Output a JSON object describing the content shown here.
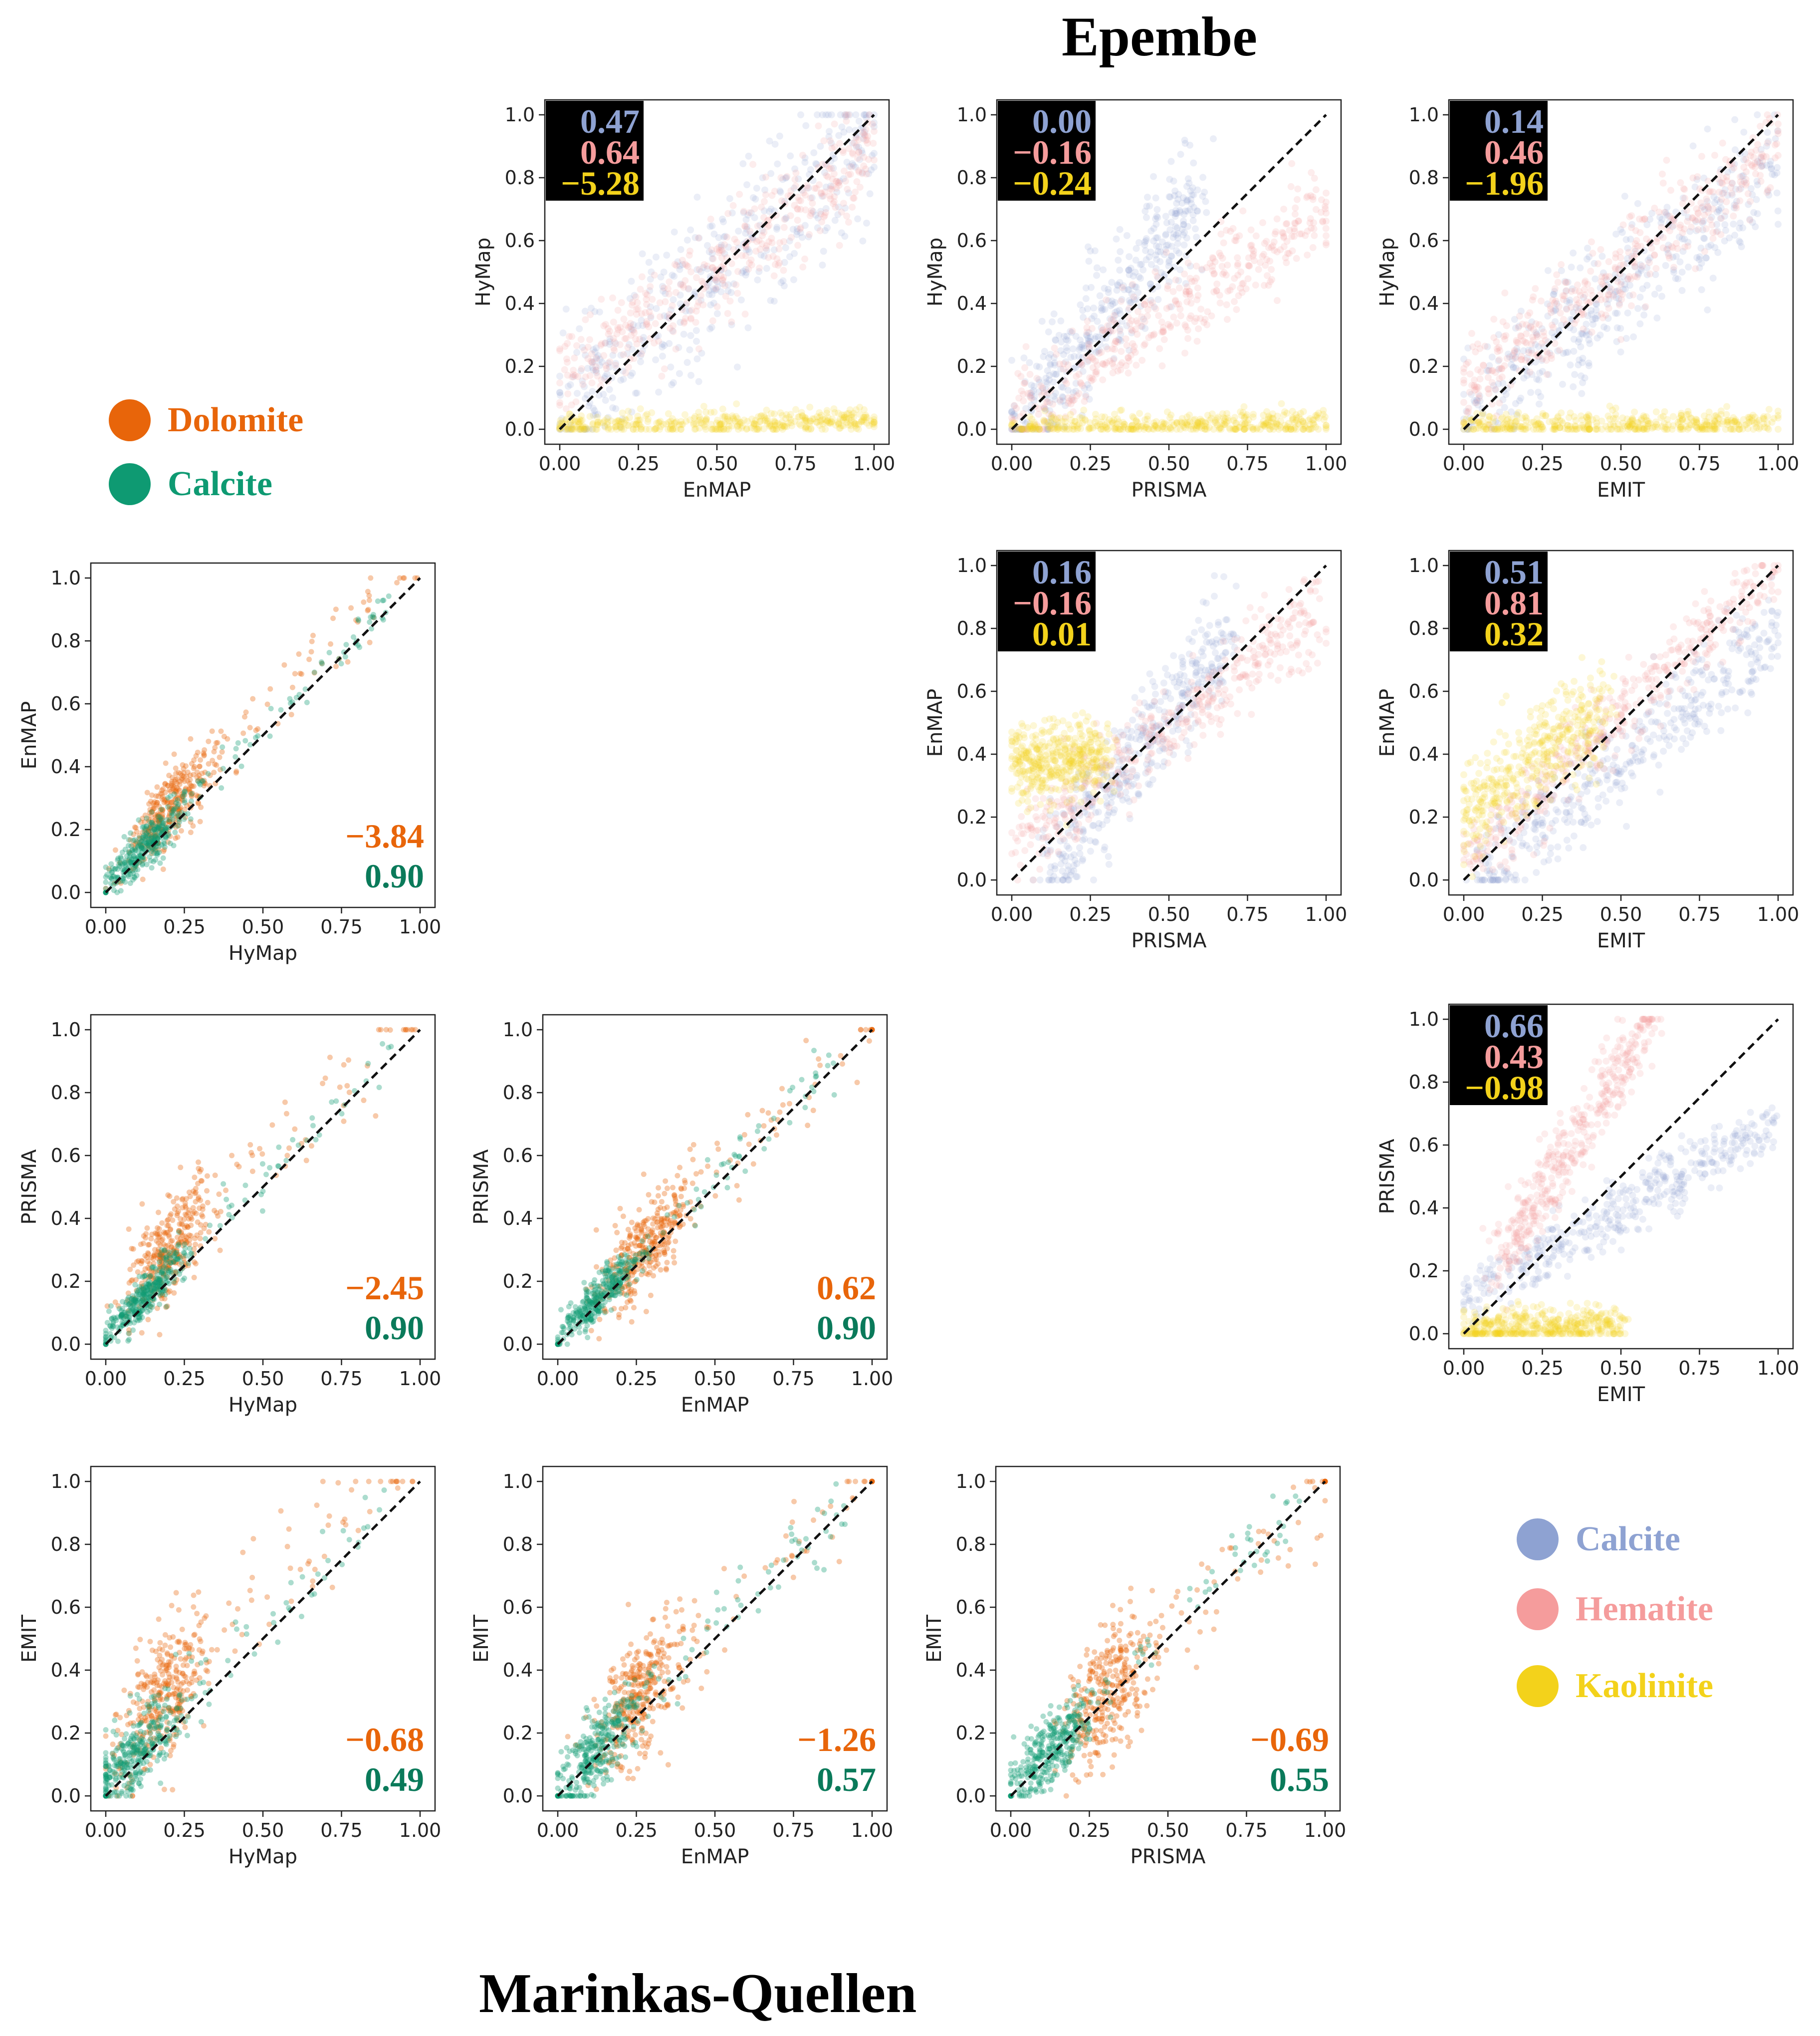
{
  "titles": {
    "top": "Epembe",
    "bottom": "Marinkas-Quellen"
  },
  "legends": {
    "marinkas": [
      {
        "label": "Dolomite",
        "color": "#e8650a"
      },
      {
        "label": "Calcite",
        "color": "#0e9a72"
      }
    ],
    "epembe": [
      {
        "label": "Calcite",
        "color": "#8ea2d2"
      },
      {
        "label": "Hematite",
        "color": "#f59c9c"
      },
      {
        "label": "Kaolinite",
        "color": "#f3d21b"
      }
    ]
  },
  "stat_colors": {
    "Dolomite": "#e8650a",
    "Calcite_mq": "#0a7a5a",
    "Calcite": "#8ea2d2",
    "Hematite": "#f59c9c",
    "Kaolinite": "#f3d21b"
  },
  "chart_data": [
    {
      "id": "hymap-vs-enmap-epembe",
      "type": "scatter",
      "site": "Epembe",
      "xlabel": "EnMAP",
      "ylabel": "HyMap",
      "xlim": [
        0,
        1
      ],
      "ylim": [
        0,
        1
      ],
      "xticks": [
        "0.00",
        "0.25",
        "0.50",
        "0.75",
        "1.00"
      ],
      "yticks": [
        "0.0",
        "0.2",
        "0.4",
        "0.6",
        "0.8",
        "1.0"
      ],
      "reference_line": "1:1 dashed",
      "series": [
        {
          "name": "Calcite",
          "color": "#8ea2d2",
          "r2": "0.47",
          "trend": [
            [
              0,
              0.05
            ],
            [
              1,
              0.95
            ]
          ],
          "spread": 0.12
        },
        {
          "name": "Hematite",
          "color": "#f59c9c",
          "r2": "0.64",
          "trend": [
            [
              0,
              0.14
            ],
            [
              1,
              0.88
            ]
          ],
          "spread": 0.08
        },
        {
          "name": "Kaolinite",
          "color": "#f3d21b",
          "r2": "−5.28",
          "trend": [
            [
              0,
              0.01
            ],
            [
              1,
              0.03
            ]
          ],
          "spread": 0.02
        }
      ]
    },
    {
      "id": "hymap-vs-prisma-epembe",
      "type": "scatter",
      "site": "Epembe",
      "xlabel": "PRISMA",
      "ylabel": "HyMap",
      "xlim": [
        0,
        1
      ],
      "ylim": [
        0,
        1
      ],
      "xticks": [
        "0.00",
        "0.25",
        "0.50",
        "0.75",
        "1.00"
      ],
      "yticks": [
        "0.0",
        "0.2",
        "0.4",
        "0.6",
        "0.8",
        "1.0"
      ],
      "reference_line": "1:1 dashed",
      "series": [
        {
          "name": "Calcite",
          "color": "#8ea2d2",
          "r2": "0.00",
          "trend": [
            [
              0,
              0.0
            ],
            [
              0.6,
              0.75
            ]
          ],
          "spread": 0.09
        },
        {
          "name": "Hematite",
          "color": "#f59c9c",
          "r2": "−0.16",
          "trend": [
            [
              0,
              0.03
            ],
            [
              1,
              0.7
            ]
          ],
          "spread": 0.07
        },
        {
          "name": "Kaolinite",
          "color": "#f3d21b",
          "r2": "−0.24",
          "trend": [
            [
              0,
              0.01
            ],
            [
              1,
              0.02
            ]
          ],
          "spread": 0.02
        }
      ]
    },
    {
      "id": "hymap-vs-emit-epembe",
      "type": "scatter",
      "site": "Epembe",
      "xlabel": "EMIT",
      "ylabel": "HyMap",
      "xlim": [
        0,
        1
      ],
      "ylim": [
        0,
        1
      ],
      "xticks": [
        "0.00",
        "0.25",
        "0.50",
        "0.75",
        "1.00"
      ],
      "yticks": [
        "0.0",
        "0.2",
        "0.4",
        "0.6",
        "0.8",
        "1.0"
      ],
      "reference_line": "1:1 dashed",
      "series": [
        {
          "name": "Calcite",
          "color": "#8ea2d2",
          "r2": "0.14",
          "trend": [
            [
              0,
              0.05
            ],
            [
              1,
              0.85
            ]
          ],
          "spread": 0.1
        },
        {
          "name": "Hematite",
          "color": "#f59c9c",
          "r2": "0.46",
          "trend": [
            [
              0,
              0.12
            ],
            [
              1,
              0.9
            ]
          ],
          "spread": 0.07
        },
        {
          "name": "Kaolinite",
          "color": "#f3d21b",
          "r2": "−1.96",
          "trend": [
            [
              0,
              0.01
            ],
            [
              1,
              0.02
            ]
          ],
          "spread": 0.02
        }
      ]
    },
    {
      "id": "enmap-vs-prisma-epembe",
      "type": "scatter",
      "site": "Epembe",
      "xlabel": "PRISMA",
      "ylabel": "EnMAP",
      "xlim": [
        0,
        1
      ],
      "ylim": [
        0,
        1
      ],
      "xticks": [
        "0.00",
        "0.25",
        "0.50",
        "0.75",
        "1.00"
      ],
      "yticks": [
        "0.0",
        "0.2",
        "0.4",
        "0.6",
        "0.8",
        "1.0"
      ],
      "reference_line": "1:1 dashed",
      "series": [
        {
          "name": "Calcite",
          "color": "#8ea2d2",
          "r2": "0.16",
          "trend": [
            [
              0.1,
              0.0
            ],
            [
              0.7,
              0.8
            ]
          ],
          "spread": 0.08
        },
        {
          "name": "Hematite",
          "color": "#f59c9c",
          "r2": "−0.16",
          "trend": [
            [
              0,
              0.1
            ],
            [
              1,
              0.88
            ]
          ],
          "spread": 0.07
        },
        {
          "name": "Kaolinite",
          "color": "#f3d21b",
          "r2": "0.01",
          "trend": [
            [
              0,
              0.36
            ],
            [
              0.3,
              0.4
            ]
          ],
          "spread": 0.06
        }
      ]
    },
    {
      "id": "enmap-vs-emit-epembe",
      "type": "scatter",
      "site": "Epembe",
      "xlabel": "EMIT",
      "ylabel": "EnMAP",
      "xlim": [
        0,
        1
      ],
      "ylim": [
        0,
        1
      ],
      "xticks": [
        "0.00",
        "0.25",
        "0.50",
        "0.75",
        "1.00"
      ],
      "yticks": [
        "0.0",
        "0.2",
        "0.4",
        "0.6",
        "0.8",
        "1.0"
      ],
      "reference_line": "1:1 dashed",
      "series": [
        {
          "name": "Calcite",
          "color": "#8ea2d2",
          "r2": "0.51",
          "trend": [
            [
              0.05,
              0.0
            ],
            [
              1,
              0.8
            ]
          ],
          "spread": 0.08
        },
        {
          "name": "Hematite",
          "color": "#f59c9c",
          "r2": "0.81",
          "trend": [
            [
              0,
              0.05
            ],
            [
              1,
              1.0
            ]
          ],
          "spread": 0.06
        },
        {
          "name": "Kaolinite",
          "color": "#f3d21b",
          "r2": "0.32",
          "trend": [
            [
              0,
              0.2
            ],
            [
              0.45,
              0.55
            ]
          ],
          "spread": 0.08
        }
      ]
    },
    {
      "id": "prisma-vs-emit-epembe",
      "type": "scatter",
      "site": "Epembe",
      "xlabel": "EMIT",
      "ylabel": "PRISMA",
      "xlim": [
        0,
        1
      ],
      "ylim": [
        0,
        1
      ],
      "xticks": [
        "0.00",
        "0.25",
        "0.50",
        "0.75",
        "1.00"
      ],
      "yticks": [
        "0.0",
        "0.2",
        "0.4",
        "0.6",
        "0.8",
        "1.0"
      ],
      "reference_line": "1:1 dashed",
      "series": [
        {
          "name": "Calcite",
          "color": "#8ea2d2",
          "r2": "0.66",
          "trend": [
            [
              0,
              0.1
            ],
            [
              1,
              0.68
            ]
          ],
          "spread": 0.05
        },
        {
          "name": "Hematite",
          "color": "#f59c9c",
          "r2": "0.43",
          "trend": [
            [
              0.1,
              0.2
            ],
            [
              0.6,
              1.0
            ]
          ],
          "spread": 0.06
        },
        {
          "name": "Kaolinite",
          "color": "#f3d21b",
          "r2": "−0.98",
          "trend": [
            [
              0,
              0.01
            ],
            [
              0.5,
              0.03
            ]
          ],
          "spread": 0.03
        }
      ]
    },
    {
      "id": "enmap-vs-hymap-mq",
      "type": "scatter",
      "site": "Marinkas-Quellen",
      "xlabel": "HyMap",
      "ylabel": "EnMAP",
      "xlim": [
        0,
        1
      ],
      "ylim": [
        0,
        1
      ],
      "xticks": [
        "0.00",
        "0.25",
        "0.50",
        "0.75",
        "1.00"
      ],
      "yticks": [
        "0.0",
        "0.2",
        "0.4",
        "0.6",
        "0.8",
        "1.0"
      ],
      "reference_line": "1:1 dashed",
      "series": [
        {
          "name": "Dolomite",
          "color": "#e8650a",
          "r2": "−3.84",
          "center": [
            0.2,
            0.25
          ],
          "slope": 1.0,
          "spread": 0.06
        },
        {
          "name": "Calcite",
          "color": "#0e9a72",
          "r2": "0.90",
          "center": [
            0.12,
            0.12
          ],
          "slope": 1.0,
          "spread": 0.03
        }
      ]
    },
    {
      "id": "prisma-vs-hymap-mq",
      "type": "scatter",
      "site": "Marinkas-Quellen",
      "xlabel": "HyMap",
      "ylabel": "PRISMA",
      "xlim": [
        0,
        1
      ],
      "ylim": [
        0,
        1
      ],
      "xticks": [
        "0.00",
        "0.25",
        "0.50",
        "0.75",
        "1.00"
      ],
      "yticks": [
        "0.0",
        "0.2",
        "0.4",
        "0.6",
        "0.8",
        "1.0"
      ],
      "reference_line": "1:1 dashed",
      "series": [
        {
          "name": "Dolomite",
          "color": "#e8650a",
          "r2": "−2.45",
          "center": [
            0.2,
            0.28
          ],
          "slope": 1.0,
          "spread": 0.08
        },
        {
          "name": "Calcite",
          "color": "#0e9a72",
          "r2": "0.90",
          "center": [
            0.12,
            0.13
          ],
          "slope": 1.0,
          "spread": 0.03
        }
      ]
    },
    {
      "id": "prisma-vs-enmap-mq",
      "type": "scatter",
      "site": "Marinkas-Quellen",
      "xlabel": "EnMAP",
      "ylabel": "PRISMA",
      "xlim": [
        0,
        1
      ],
      "ylim": [
        0,
        1
      ],
      "xticks": [
        "0.00",
        "0.25",
        "0.50",
        "0.75",
        "1.00"
      ],
      "yticks": [
        "0.0",
        "0.2",
        "0.4",
        "0.6",
        "0.8",
        "1.0"
      ],
      "reference_line": "1:1 dashed",
      "series": [
        {
          "name": "Dolomite",
          "color": "#e8650a",
          "r2": "0.62",
          "center": [
            0.27,
            0.28
          ],
          "slope": 1.0,
          "spread": 0.07
        },
        {
          "name": "Calcite",
          "color": "#0e9a72",
          "r2": "0.90",
          "center": [
            0.12,
            0.12
          ],
          "slope": 1.0,
          "spread": 0.03
        }
      ]
    },
    {
      "id": "emit-vs-hymap-mq",
      "type": "scatter",
      "site": "Marinkas-Quellen",
      "xlabel": "HyMap",
      "ylabel": "EMIT",
      "xlim": [
        0,
        1
      ],
      "ylim": [
        0,
        1
      ],
      "xticks": [
        "0.00",
        "0.25",
        "0.50",
        "0.75",
        "1.00"
      ],
      "yticks": [
        "0.0",
        "0.2",
        "0.4",
        "0.6",
        "0.8",
        "1.0"
      ],
      "reference_line": "1:1 dashed",
      "series": [
        {
          "name": "Dolomite",
          "color": "#e8650a",
          "r2": "−0.68",
          "center": [
            0.18,
            0.3
          ],
          "slope": 1.0,
          "spread": 0.1
        },
        {
          "name": "Calcite",
          "color": "#0e9a72",
          "r2": "0.49",
          "center": [
            0.1,
            0.12
          ],
          "slope": 1.0,
          "spread": 0.06
        }
      ]
    },
    {
      "id": "emit-vs-enmap-mq",
      "type": "scatter",
      "site": "Marinkas-Quellen",
      "xlabel": "EnMAP",
      "ylabel": "EMIT",
      "xlim": [
        0,
        1
      ],
      "ylim": [
        0,
        1
      ],
      "xticks": [
        "0.00",
        "0.25",
        "0.50",
        "0.75",
        "1.00"
      ],
      "yticks": [
        "0.0",
        "0.2",
        "0.4",
        "0.6",
        "0.8",
        "1.0"
      ],
      "reference_line": "1:1 dashed",
      "series": [
        {
          "name": "Dolomite",
          "color": "#e8650a",
          "r2": "−1.26",
          "center": [
            0.25,
            0.3
          ],
          "slope": 1.0,
          "spread": 0.1
        },
        {
          "name": "Calcite",
          "color": "#0e9a72",
          "r2": "0.57",
          "center": [
            0.12,
            0.12
          ],
          "slope": 1.0,
          "spread": 0.06
        }
      ]
    },
    {
      "id": "emit-vs-prisma-mq",
      "type": "scatter",
      "site": "Marinkas-Quellen",
      "xlabel": "PRISMA",
      "ylabel": "EMIT",
      "xlim": [
        0,
        1
      ],
      "ylim": [
        0,
        1
      ],
      "xticks": [
        "0.00",
        "0.25",
        "0.50",
        "0.75",
        "1.00"
      ],
      "yticks": [
        "0.0",
        "0.2",
        "0.4",
        "0.6",
        "0.8",
        "1.0"
      ],
      "reference_line": "1:1 dashed",
      "series": [
        {
          "name": "Dolomite",
          "color": "#e8650a",
          "r2": "−0.69",
          "center": [
            0.3,
            0.3
          ],
          "slope": 1.0,
          "spread": 0.1
        },
        {
          "name": "Calcite",
          "color": "#0e9a72",
          "r2": "0.55",
          "center": [
            0.12,
            0.12
          ],
          "slope": 1.0,
          "spread": 0.05
        }
      ]
    }
  ]
}
